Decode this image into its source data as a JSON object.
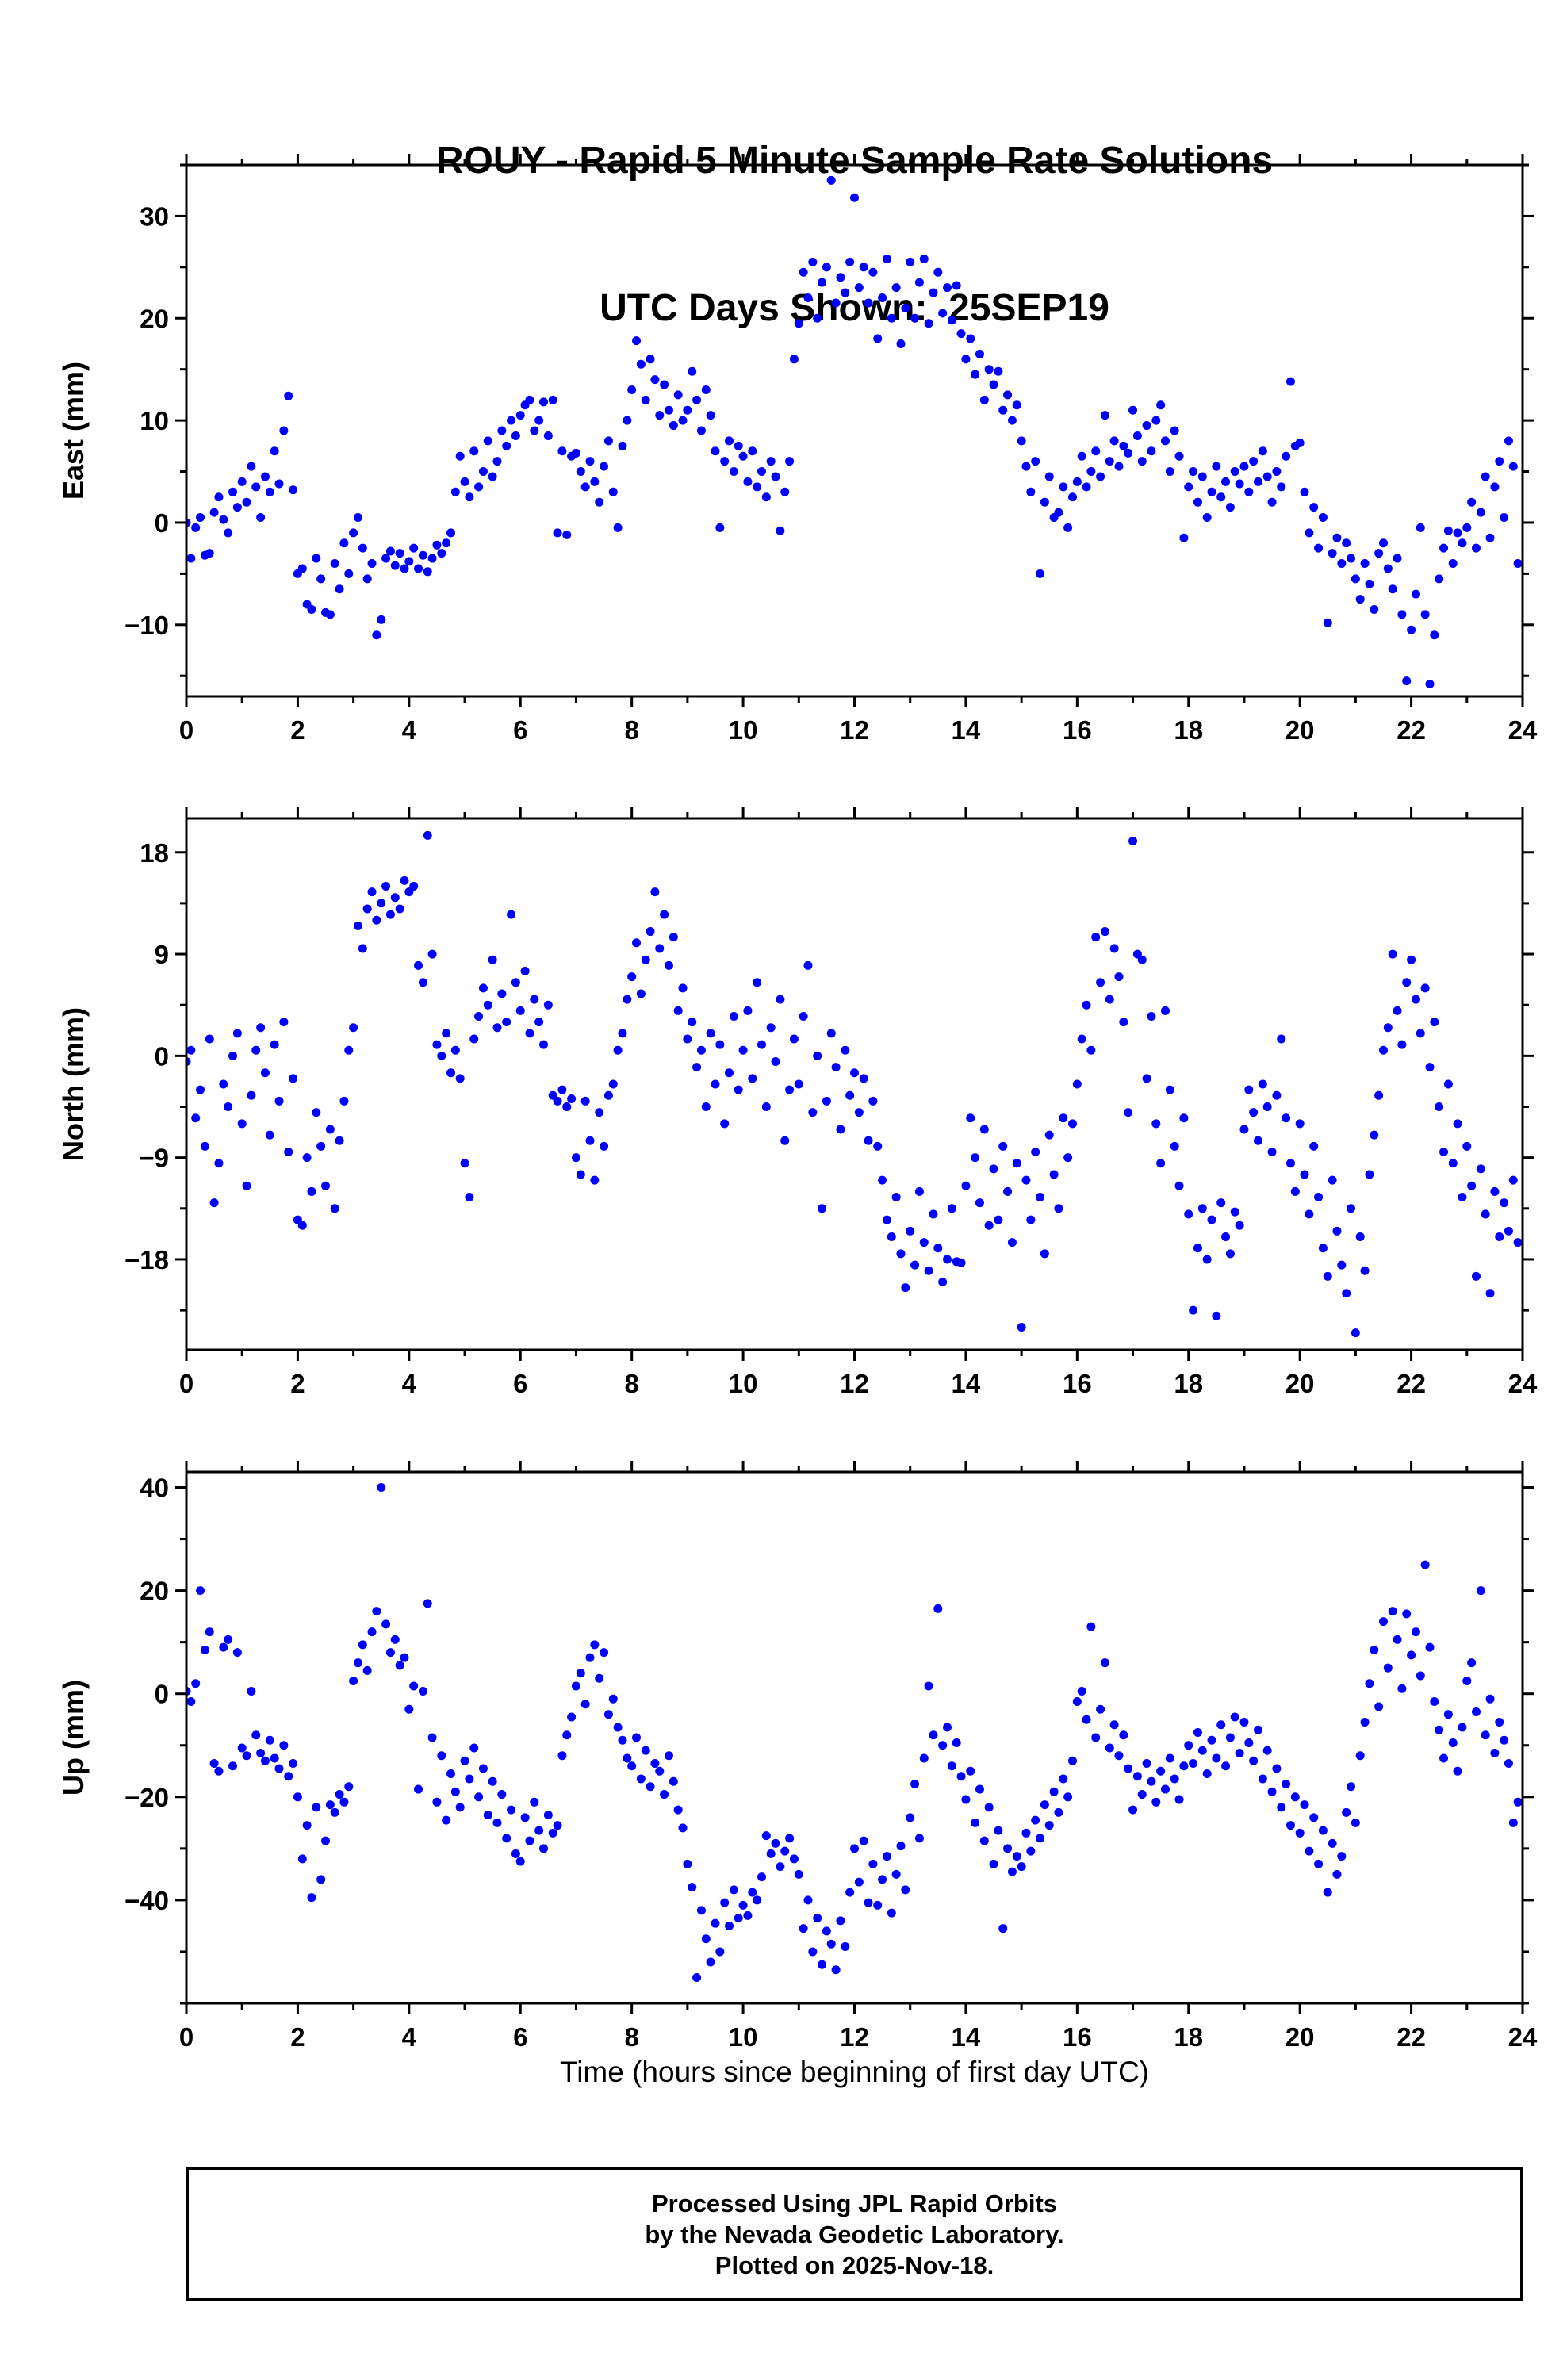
{
  "title": {
    "line1": "ROUY - Rapid 5 Minute Sample Rate Solutions",
    "line2": "UTC Days Shown:  25SEP19"
  },
  "footer": {
    "lines": [
      "Processed Using JPL Rapid Orbits",
      "by the Nevada Geodetic Laboratory.",
      "Plotted on 2025-Nov-18."
    ]
  },
  "colors": {
    "marker": "#0000ff",
    "axis": "#000000",
    "background": "#ffffff"
  },
  "chart_data": {
    "type": "scatter",
    "station": "ROUY",
    "x_label": "Time (hours since beginning of first day UTC)",
    "xlim": [
      0,
      24
    ],
    "x_major_ticks": [
      0,
      2,
      4,
      6,
      8,
      10,
      12,
      14,
      16,
      18,
      20,
      22,
      24
    ],
    "x_minor_step": 1,
    "x_start": 0,
    "x_step": 0.0833333,
    "marker": {
      "shape": "circle",
      "radius_px": 5.5
    },
    "grid": false,
    "legend": "none",
    "panels": [
      {
        "id": "east",
        "ylabel": "East (mm)",
        "ylim": [
          -17,
          35
        ],
        "yticks": [
          -10,
          0,
          10,
          20,
          30
        ],
        "y_minor_step": 5,
        "y": [
          0.0,
          -3.5,
          -0.5,
          0.5,
          -3.2,
          -3.0,
          1.0,
          2.5,
          0.3,
          -1.0,
          3.0,
          1.5,
          4.0,
          2.0,
          5.5,
          3.5,
          0.5,
          4.5,
          3.0,
          7.0,
          3.8,
          9.0,
          12.4,
          3.2,
          -5.0,
          -4.5,
          -8.0,
          -8.5,
          -3.5,
          -5.5,
          -8.8,
          -9.0,
          -4.0,
          -6.5,
          -2.0,
          -5.0,
          -1.0,
          0.5,
          -2.5,
          -5.5,
          -4.0,
          -11.0,
          -9.5,
          -3.5,
          -2.8,
          -4.2,
          -3.0,
          -4.5,
          -3.8,
          -2.5,
          -4.5,
          -3.2,
          -4.8,
          -3.5,
          -2.2,
          -3.0,
          -2.0,
          -1.0,
          3.0,
          6.5,
          4.0,
          2.5,
          7.0,
          3.5,
          5.0,
          8.0,
          4.5,
          6.0,
          9.0,
          7.5,
          10.0,
          8.5,
          10.5,
          11.5,
          12.0,
          9.0,
          10.0,
          11.8,
          8.5,
          12.0,
          -1.0,
          7.0,
          -1.2,
          6.5,
          6.8,
          5.0,
          3.5,
          6.0,
          4.0,
          2.0,
          5.5,
          8.0,
          3.0,
          -0.5,
          7.5,
          10.0,
          13.0,
          17.8,
          15.5,
          12.0,
          16.0,
          14.0,
          10.5,
          13.5,
          11.0,
          9.5,
          12.5,
          10.0,
          11.0,
          14.8,
          12.0,
          9.0,
          13.0,
          10.5,
          7.0,
          -0.5,
          6.0,
          8.0,
          5.0,
          7.5,
          6.5,
          4.0,
          7.0,
          3.5,
          5.0,
          2.5,
          6.0,
          4.5,
          -0.8,
          3.0,
          6.0,
          16.0,
          19.5,
          24.5,
          22.0,
          25.5,
          20.0,
          23.5,
          25.0,
          33.5,
          21.5,
          24.0,
          22.5,
          25.5,
          31.8,
          23.0,
          25.0,
          21.5,
          24.5,
          18.0,
          22.0,
          25.8,
          20.0,
          23.0,
          17.5,
          21.0,
          25.5,
          20.0,
          23.5,
          25.8,
          19.5,
          22.5,
          24.5,
          20.5,
          23.0,
          19.8,
          23.2,
          18.5,
          16.0,
          18.0,
          14.5,
          16.5,
          12.0,
          15.0,
          13.5,
          14.8,
          11.0,
          12.5,
          10.0,
          11.5,
          8.0,
          5.5,
          3.0,
          6.0,
          -5.0,
          2.0,
          4.5,
          0.5,
          1.0,
          3.5,
          -0.5,
          2.5,
          4.0,
          6.5,
          3.5,
          5.0,
          7.0,
          4.5,
          10.5,
          6.0,
          8.0,
          5.5,
          7.5,
          6.8,
          11.0,
          8.5,
          6.0,
          9.5,
          7.0,
          10.0,
          11.5,
          8.0,
          5.0,
          9.0,
          6.5,
          -1.5,
          3.5,
          5.0,
          2.0,
          4.5,
          0.5,
          3.0,
          5.5,
          2.5,
          4.0,
          1.5,
          5.0,
          3.8,
          5.5,
          3.0,
          6.0,
          4.0,
          7.0,
          4.5,
          2.0,
          5.0,
          3.5,
          6.5,
          13.8,
          7.5,
          7.8,
          3.0,
          -1.0,
          1.5,
          -2.5,
          0.5,
          -9.8,
          -3.0,
          -1.5,
          -4.0,
          -2.0,
          -3.5,
          -5.5,
          -7.5,
          -4.0,
          -6.0,
          -8.5,
          -3.0,
          -2.0,
          -4.5,
          -6.5,
          -3.5,
          -9.0,
          -15.5,
          -10.5,
          -7.0,
          -0.5,
          -9.0,
          -15.8,
          -11.0,
          -5.5,
          -2.5,
          -0.8,
          -4.0,
          -1.0,
          -2.0,
          -0.5,
          2.0,
          -2.5,
          1.0,
          4.5,
          -1.5,
          3.5,
          6.0,
          0.5,
          8.0,
          5.5,
          -4.0
        ]
      },
      {
        "id": "north",
        "ylabel": "North (mm)",
        "ylim": [
          -26,
          21
        ],
        "yticks": [
          -18,
          -9,
          0,
          9,
          18
        ],
        "y_minor_step": 4.5,
        "y": [
          -0.5,
          0.5,
          -5.5,
          -3.0,
          -8.0,
          1.5,
          -13.0,
          -9.5,
          -2.5,
          -4.5,
          0.0,
          2.0,
          -6.0,
          -11.5,
          -3.5,
          0.5,
          2.5,
          -1.5,
          -7.0,
          1.0,
          -4.0,
          3.0,
          -8.5,
          -2.0,
          -14.5,
          -15.0,
          -9.0,
          -12.0,
          -5.0,
          -8.0,
          -11.5,
          -6.5,
          -13.5,
          -7.5,
          -4.0,
          0.5,
          2.5,
          11.5,
          9.5,
          13.0,
          14.5,
          12.0,
          13.5,
          15.0,
          12.5,
          14.0,
          13.0,
          15.5,
          14.5,
          15.0,
          8.0,
          6.5,
          19.5,
          9.0,
          1.0,
          0.0,
          2.0,
          -1.5,
          0.5,
          -2.0,
          -9.5,
          -12.5,
          1.5,
          3.5,
          6.0,
          4.5,
          8.5,
          2.5,
          5.5,
          3.0,
          12.5,
          6.5,
          4.0,
          7.5,
          2.0,
          5.0,
          3.0,
          1.0,
          4.5,
          -3.5,
          -4.0,
          -3.0,
          -4.5,
          -3.8,
          -9.0,
          -10.5,
          -4.0,
          -7.5,
          -11.0,
          -5.0,
          -8.0,
          -3.5,
          -2.5,
          0.5,
          2.0,
          5.0,
          7.0,
          10.0,
          5.5,
          8.5,
          11.0,
          14.5,
          9.5,
          12.5,
          8.0,
          10.5,
          4.0,
          6.0,
          1.5,
          3.0,
          -1.0,
          0.5,
          -4.5,
          2.0,
          -2.5,
          1.0,
          -6.0,
          -1.5,
          3.5,
          -3.0,
          0.5,
          4.0,
          -2.0,
          6.5,
          1.0,
          -4.5,
          2.5,
          -0.5,
          5.0,
          -7.5,
          -3.0,
          1.5,
          -2.5,
          3.5,
          8.0,
          -5.0,
          0.0,
          -13.5,
          -4.0,
          2.0,
          -1.0,
          -6.5,
          0.5,
          -3.5,
          -1.5,
          -5.0,
          -2.0,
          -7.5,
          -4.0,
          -8.0,
          -11.0,
          -14.5,
          -16.0,
          -12.5,
          -17.5,
          -20.5,
          -15.5,
          -18.5,
          -12.0,
          -16.5,
          -19.0,
          -14.0,
          -17.0,
          -20.0,
          -18.0,
          -13.5,
          -18.2,
          -18.3,
          -11.5,
          -5.5,
          -9.0,
          -13.0,
          -6.5,
          -15.0,
          -10.0,
          -14.5,
          -8.0,
          -12.0,
          -16.5,
          -9.5,
          -24.0,
          -11.0,
          -14.5,
          -8.5,
          -12.5,
          -17.5,
          -7.0,
          -10.5,
          -13.5,
          -5.5,
          -9.0,
          -6.0,
          -2.5,
          1.5,
          4.5,
          0.5,
          10.5,
          6.5,
          11.0,
          5.0,
          9.5,
          7.0,
          3.0,
          -5.0,
          19.0,
          9.0,
          8.5,
          -2.0,
          3.5,
          -6.0,
          -9.5,
          4.0,
          -3.0,
          -8.0,
          -11.5,
          -5.5,
          -14.0,
          -22.5,
          -17.0,
          -13.5,
          -18.0,
          -14.5,
          -23.0,
          -13.0,
          -16.0,
          -17.5,
          -13.8,
          -15.0,
          -6.5,
          -3.0,
          -5.0,
          -7.5,
          -2.5,
          -4.5,
          -8.5,
          -3.5,
          1.5,
          -5.5,
          -9.5,
          -12.0,
          -6.0,
          -10.5,
          -14.0,
          -8.0,
          -12.5,
          -17.0,
          -19.5,
          -11.0,
          -15.5,
          -18.5,
          -21.0,
          -13.5,
          -24.5,
          -16.0,
          -19.0,
          -10.5,
          -7.0,
          -3.5,
          0.5,
          2.5,
          9.0,
          4.0,
          1.0,
          6.5,
          8.5,
          5.0,
          2.0,
          6.0,
          -1.0,
          3.0,
          -4.5,
          -8.5,
          -2.5,
          -9.5,
          -6.0,
          -12.5,
          -8.0,
          -11.5,
          -19.5,
          -10.0,
          -14.0,
          -21.0,
          -12.0,
          -16.0,
          -13.0,
          -15.5,
          -11.0,
          -16.5
        ]
      },
      {
        "id": "up",
        "ylabel": "Up (mm)",
        "ylim": [
          -60,
          43
        ],
        "yticks": [
          -40,
          -20,
          0,
          20,
          40
        ],
        "y_minor_step": 10,
        "y": [
          0.5,
          -1.5,
          2.0,
          20.0,
          8.5,
          12.0,
          -13.5,
          -15.0,
          9.0,
          10.5,
          -14.0,
          8.0,
          -10.5,
          -12.0,
          0.5,
          -8.0,
          -11.5,
          -13.0,
          -9.0,
          -12.5,
          -14.5,
          -10.0,
          -16.0,
          -13.5,
          -20.0,
          -32.0,
          -25.5,
          -39.5,
          -22.0,
          -36.0,
          -28.5,
          -21.5,
          -23.0,
          -19.5,
          -21.0,
          -18.0,
          2.5,
          6.0,
          9.5,
          4.5,
          12.0,
          16.0,
          40.0,
          13.5,
          8.0,
          10.5,
          5.5,
          7.0,
          -3.0,
          1.5,
          -18.5,
          0.5,
          17.5,
          -8.5,
          -21.0,
          -12.0,
          -24.5,
          -15.5,
          -19.0,
          -22.0,
          -13.0,
          -16.5,
          -10.5,
          -20.0,
          -14.5,
          -23.5,
          -17.0,
          -25.0,
          -19.5,
          -28.0,
          -22.5,
          -31.0,
          -32.5,
          -24.0,
          -28.5,
          -21.0,
          -26.5,
          -30.0,
          -23.5,
          -27.0,
          -25.5,
          -12.0,
          -8.0,
          -4.5,
          1.5,
          4.0,
          -2.0,
          7.0,
          9.5,
          3.0,
          8.0,
          -4.0,
          -1.0,
          -6.5,
          -9.0,
          -12.5,
          -14.0,
          -8.5,
          -16.5,
          -11.0,
          -18.0,
          -13.5,
          -15.0,
          -19.5,
          -12.0,
          -17.0,
          -22.5,
          -26.0,
          -33.0,
          -37.5,
          -55.0,
          -42.0,
          -47.5,
          -52.0,
          -44.5,
          -50.0,
          -40.5,
          -45.0,
          -38.0,
          -43.5,
          -41.0,
          -43.0,
          -38.5,
          -40.0,
          -35.5,
          -27.5,
          -31.0,
          -29.0,
          -33.5,
          -30.5,
          -28.0,
          -32.0,
          -35.0,
          -45.5,
          -40.0,
          -50.0,
          -43.5,
          -52.5,
          -46.0,
          -48.5,
          -53.5,
          -44.0,
          -49.0,
          -38.5,
          -30.0,
          -36.5,
          -28.5,
          -40.5,
          -33.0,
          -41.0,
          -36.0,
          -31.5,
          -42.5,
          -35.0,
          -29.5,
          -38.0,
          -24.0,
          -17.5,
          -28.0,
          -12.5,
          1.5,
          -8.0,
          16.5,
          -10.0,
          -6.5,
          -14.0,
          -9.5,
          -16.0,
          -20.5,
          -15.0,
          -25.0,
          -18.5,
          -28.5,
          -22.0,
          -33.0,
          -26.5,
          -45.5,
          -30.0,
          -34.5,
          -31.5,
          -33.5,
          -27.0,
          -30.5,
          -24.5,
          -28.0,
          -21.5,
          -25.5,
          -19.0,
          -23.0,
          -16.5,
          -20.0,
          -13.0,
          -1.5,
          0.5,
          -5.0,
          13.0,
          -8.5,
          -3.0,
          6.0,
          -10.5,
          -6.0,
          -12.0,
          -8.0,
          -14.5,
          -22.5,
          -16.0,
          -19.5,
          -13.5,
          -17.0,
          -21.0,
          -15.0,
          -18.5,
          -12.5,
          -16.5,
          -20.5,
          -14.0,
          -10.0,
          -13.5,
          -7.5,
          -11.0,
          -15.5,
          -9.0,
          -12.5,
          -6.0,
          -14.0,
          -8.5,
          -4.5,
          -11.5,
          -5.5,
          -9.5,
          -13.0,
          -7.0,
          -16.5,
          -11.0,
          -19.0,
          -14.5,
          -22.0,
          -17.5,
          -25.5,
          -20.0,
          -27.0,
          -21.5,
          -30.5,
          -24.0,
          -33.0,
          -26.5,
          -38.5,
          -29.0,
          -35.0,
          -31.5,
          -23.0,
          -18.0,
          -25.0,
          -12.0,
          -5.5,
          2.0,
          8.5,
          -2.5,
          14.0,
          5.0,
          16.0,
          10.5,
          1.0,
          15.5,
          7.5,
          12.0,
          3.5,
          25.0,
          9.0,
          -1.5,
          -7.0,
          -12.5,
          -4.0,
          -9.5,
          -15.0,
          -6.5,
          2.5,
          6.0,
          -3.5,
          20.0,
          -8.0,
          -1.0,
          -11.5,
          -5.5,
          -9.0,
          -13.5,
          -25.0,
          -21.0
        ]
      }
    ]
  }
}
